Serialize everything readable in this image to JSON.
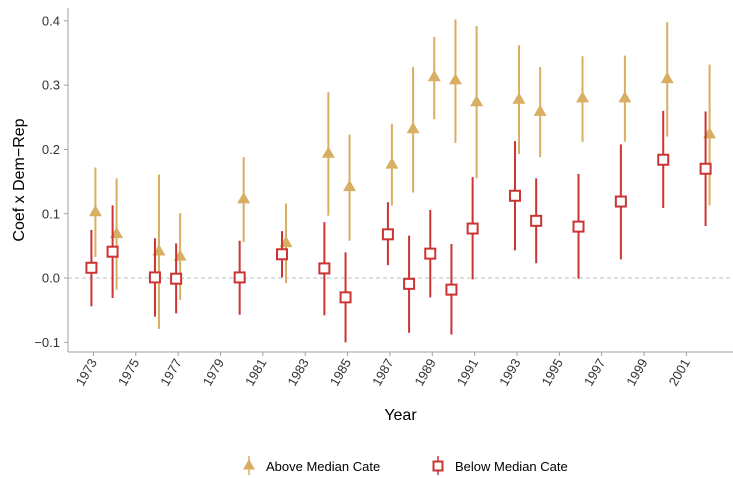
{
  "chart_data": {
    "type": "scatter",
    "title": "",
    "xlabel": "Year",
    "ylabel": "Coef x Dem−Rep",
    "xlim": [
      1971.8,
      2003.2
    ],
    "ylim": [
      -0.115,
      0.42
    ],
    "x_ticks": [
      1973,
      1975,
      1977,
      1979,
      1981,
      1983,
      1985,
      1987,
      1989,
      1991,
      1993,
      1995,
      1997,
      1999,
      2001
    ],
    "y_ticks": [
      -0.1,
      0.0,
      0.1,
      0.2,
      0.3,
      0.4
    ],
    "y_tick_labels": [
      "−0.1",
      "0.0",
      "0.1",
      "0.2",
      "0.3",
      "0.4"
    ],
    "reference_line": 0,
    "grid": false,
    "legend_position": "bottom",
    "series": [
      {
        "name": "Above Median Cate",
        "color": "#d8ae62",
        "marker": "triangle",
        "points": [
          {
            "x": 1973,
            "y": 0.102,
            "lo": 0.033,
            "hi": 0.172
          },
          {
            "x": 1974,
            "y": 0.068,
            "lo": -0.018,
            "hi": 0.155
          },
          {
            "x": 1976,
            "y": 0.041,
            "lo": -0.079,
            "hi": 0.161
          },
          {
            "x": 1977,
            "y": 0.033,
            "lo": -0.034,
            "hi": 0.101
          },
          {
            "x": 1980,
            "y": 0.122,
            "lo": 0.056,
            "hi": 0.188
          },
          {
            "x": 1982,
            "y": 0.054,
            "lo": -0.008,
            "hi": 0.116
          },
          {
            "x": 1984,
            "y": 0.193,
            "lo": 0.097,
            "hi": 0.289
          },
          {
            "x": 1985,
            "y": 0.141,
            "lo": 0.058,
            "hi": 0.223
          },
          {
            "x": 1987,
            "y": 0.176,
            "lo": 0.113,
            "hi": 0.24
          },
          {
            "x": 1988,
            "y": 0.231,
            "lo": 0.133,
            "hi": 0.328
          },
          {
            "x": 1989,
            "y": 0.312,
            "lo": 0.247,
            "hi": 0.375
          },
          {
            "x": 1990,
            "y": 0.307,
            "lo": 0.21,
            "hi": 0.402
          },
          {
            "x": 1991,
            "y": 0.273,
            "lo": 0.155,
            "hi": 0.392
          },
          {
            "x": 1993,
            "y": 0.277,
            "lo": 0.193,
            "hi": 0.362
          },
          {
            "x": 1994,
            "y": 0.258,
            "lo": 0.188,
            "hi": 0.328
          },
          {
            "x": 1996,
            "y": 0.279,
            "lo": 0.212,
            "hi": 0.345
          },
          {
            "x": 1998,
            "y": 0.279,
            "lo": 0.212,
            "hi": 0.346
          },
          {
            "x": 2000,
            "y": 0.309,
            "lo": 0.22,
            "hi": 0.398
          },
          {
            "x": 2002,
            "y": 0.223,
            "lo": 0.113,
            "hi": 0.332
          }
        ]
      },
      {
        "name": "Below Median Cate",
        "color": "#cc3333",
        "marker": "square",
        "points": [
          {
            "x": 1973,
            "y": 0.016,
            "lo": -0.044,
            "hi": 0.075
          },
          {
            "x": 1974,
            "y": 0.041,
            "lo": -0.031,
            "hi": 0.113
          },
          {
            "x": 1976,
            "y": 0.001,
            "lo": -0.06,
            "hi": 0.062
          },
          {
            "x": 1977,
            "y": -0.001,
            "lo": -0.055,
            "hi": 0.054
          },
          {
            "x": 1980,
            "y": 0.001,
            "lo": -0.057,
            "hi": 0.058
          },
          {
            "x": 1982,
            "y": 0.037,
            "lo": 0.001,
            "hi": 0.073
          },
          {
            "x": 1984,
            "y": 0.015,
            "lo": -0.058,
            "hi": 0.087
          },
          {
            "x": 1985,
            "y": -0.03,
            "lo": -0.1,
            "hi": 0.04
          },
          {
            "x": 1987,
            "y": 0.068,
            "lo": 0.02,
            "hi": 0.118
          },
          {
            "x": 1988,
            "y": -0.009,
            "lo": -0.085,
            "hi": 0.066
          },
          {
            "x": 1989,
            "y": 0.038,
            "lo": -0.03,
            "hi": 0.106
          },
          {
            "x": 1990,
            "y": -0.018,
            "lo": -0.088,
            "hi": 0.053
          },
          {
            "x": 1991,
            "y": 0.077,
            "lo": -0.002,
            "hi": 0.157
          },
          {
            "x": 1993,
            "y": 0.128,
            "lo": 0.043,
            "hi": 0.213
          },
          {
            "x": 1994,
            "y": 0.089,
            "lo": 0.023,
            "hi": 0.155
          },
          {
            "x": 1996,
            "y": 0.08,
            "lo": -0.001,
            "hi": 0.162
          },
          {
            "x": 1998,
            "y": 0.119,
            "lo": 0.029,
            "hi": 0.208
          },
          {
            "x": 2000,
            "y": 0.184,
            "lo": 0.109,
            "hi": 0.26
          },
          {
            "x": 2002,
            "y": 0.17,
            "lo": 0.081,
            "hi": 0.259
          }
        ]
      }
    ]
  }
}
